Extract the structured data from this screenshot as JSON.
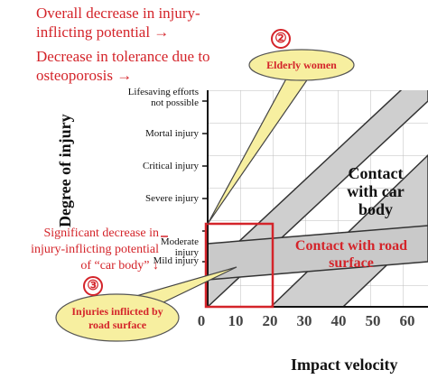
{
  "notes": {
    "overall_decrease_1": "Overall decrease in injury-",
    "overall_decrease_2": "inflicting potential  →",
    "tolerance_1": "Decrease in tolerance due to",
    "tolerance_2": "osteoporosis  →",
    "car_body_1": "Significant decrease in",
    "car_body_2": "injury-inflicting potential",
    "car_body_3": "of “car body”  ↓"
  },
  "markers": {
    "two": "②",
    "three": "③"
  },
  "callouts": {
    "elderly_women": "Elderly women",
    "road_injuries_1": "Injuries inflicted by",
    "road_injuries_2": "road surface"
  },
  "regions": {
    "car_body_1": "Contact",
    "car_body_2": "with car",
    "car_body_3": "body",
    "road_1": "Contact with road",
    "road_2": "surface"
  },
  "axes": {
    "ylabel": "Degree of injury",
    "xlabel": "Impact velocity",
    "y_levels": [
      {
        "line1": "Lifesaving efforts",
        "line2": "not possible"
      },
      {
        "line1": "Mortal injury",
        "line2": ""
      },
      {
        "line1": "Critical injury",
        "line2": ""
      },
      {
        "line1": "Severe injury",
        "line2": ""
      },
      {
        "line1": "Moderate",
        "line2": "injury"
      },
      {
        "line1": "Mild injury",
        "line2": ""
      }
    ],
    "x_ticks": [
      "0",
      "10",
      "20",
      "30",
      "40",
      "50",
      "60"
    ]
  },
  "colors": {
    "accent_red": "#d4242a",
    "callout_fill": "#f7efa0",
    "band_fill": "#c9c9c9"
  }
}
